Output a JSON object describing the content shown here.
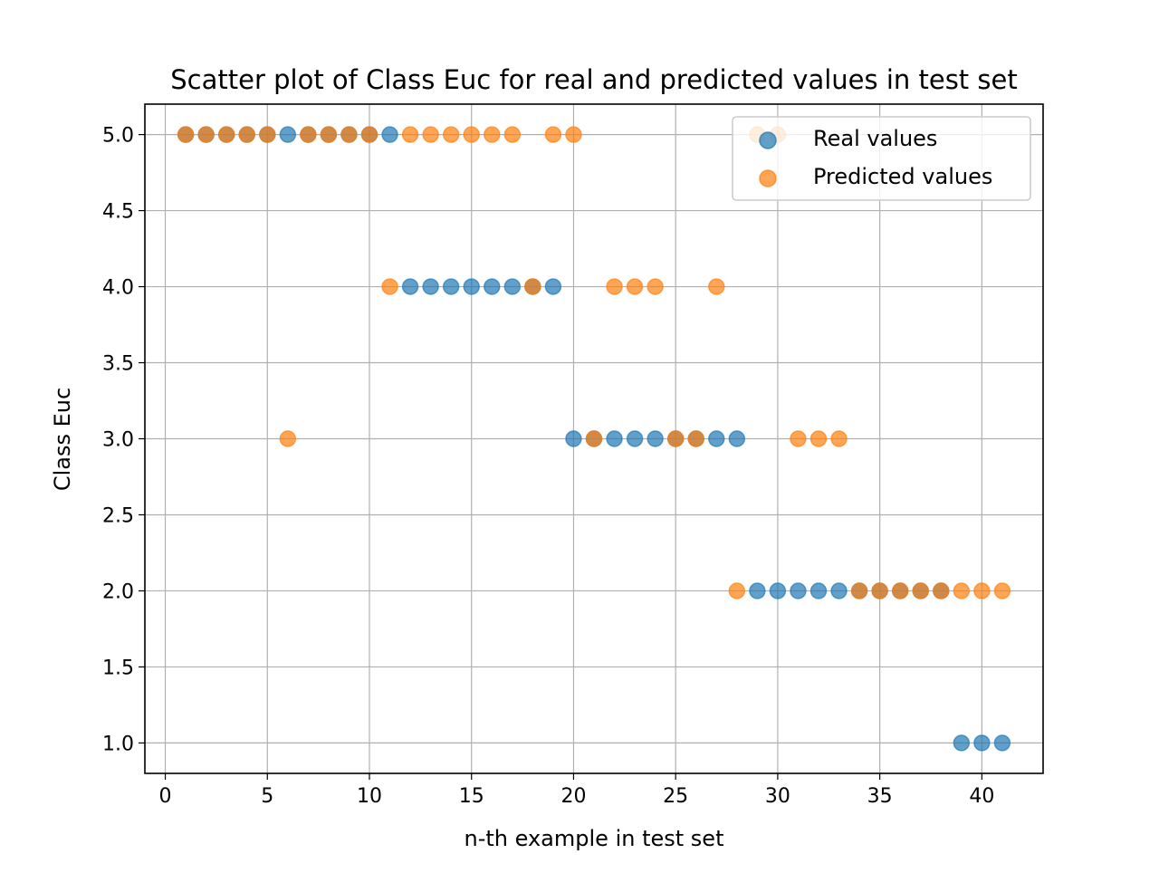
{
  "chart_data": {
    "type": "scatter",
    "title": "Scatter plot of Class Euc for real and predicted values in test set",
    "xlabel": "n-th example in test set",
    "ylabel": "Class Euc",
    "xlim": [
      -1,
      43
    ],
    "ylim": [
      0.8,
      5.2
    ],
    "x_ticks": [
      0,
      5,
      10,
      15,
      20,
      25,
      30,
      35,
      40
    ],
    "x_tick_labels": [
      "0",
      "5",
      "10",
      "15",
      "20",
      "25",
      "30",
      "35",
      "40"
    ],
    "y_ticks": [
      1.0,
      1.5,
      2.0,
      2.5,
      3.0,
      3.5,
      4.0,
      4.5,
      5.0
    ],
    "y_tick_labels": [
      "1.0",
      "1.5",
      "2.0",
      "2.5",
      "3.0",
      "3.5",
      "4.0",
      "4.5",
      "5.0"
    ],
    "grid": true,
    "legend_position": "top-right",
    "series": [
      {
        "name": "Real values",
        "color": "#1f77b4",
        "x": [
          1,
          2,
          3,
          4,
          5,
          6,
          7,
          8,
          9,
          10,
          11,
          12,
          13,
          14,
          15,
          16,
          17,
          18,
          19,
          20,
          21,
          22,
          23,
          24,
          25,
          26,
          27,
          28,
          29,
          30,
          31,
          32,
          33,
          34,
          35,
          36,
          37,
          38,
          39,
          40,
          41
        ],
        "y": [
          5,
          5,
          5,
          5,
          5,
          5,
          5,
          5,
          5,
          5,
          5,
          4,
          4,
          4,
          4,
          4,
          4,
          4,
          4,
          3,
          3,
          3,
          3,
          3,
          3,
          3,
          3,
          3,
          2,
          2,
          2,
          2,
          2,
          2,
          2,
          2,
          2,
          2,
          1,
          1,
          1
        ]
      },
      {
        "name": "Predicted values",
        "color": "#ff7f0e",
        "x": [
          1,
          2,
          3,
          4,
          5,
          6,
          7,
          8,
          9,
          10,
          11,
          12,
          13,
          14,
          15,
          16,
          17,
          18,
          19,
          20,
          21,
          22,
          23,
          24,
          25,
          26,
          27,
          28,
          29,
          30,
          31,
          32,
          33,
          34,
          35,
          36,
          37,
          38,
          39,
          40,
          41
        ],
        "y": [
          5,
          5,
          5,
          5,
          5,
          3,
          5,
          5,
          5,
          5,
          4,
          5,
          5,
          5,
          5,
          5,
          5,
          4,
          5,
          5,
          3,
          4,
          4,
          4,
          3,
          3,
          4,
          2,
          5,
          5,
          3,
          3,
          3,
          2,
          2,
          2,
          2,
          2,
          2,
          2,
          2
        ]
      }
    ]
  }
}
